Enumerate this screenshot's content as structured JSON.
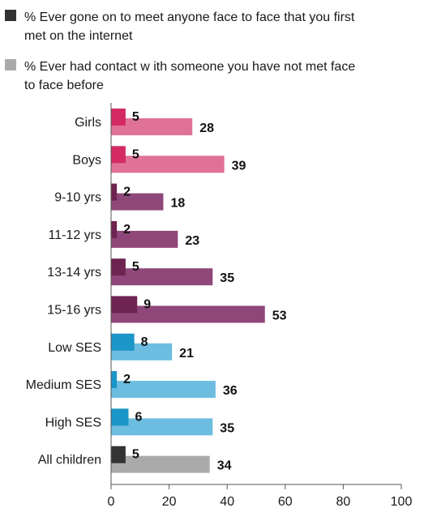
{
  "chart_data": {
    "type": "bar",
    "orientation": "horizontal",
    "title": "",
    "xlabel": "",
    "ylabel": "",
    "xlim": [
      0,
      100
    ],
    "x_ticks": [
      0,
      20,
      40,
      60,
      80,
      100
    ],
    "grid": false,
    "legend_position": "top",
    "series": [
      {
        "name": "% Ever gone on to meet anyone face to face that you first met on the internet",
        "name_lines": [
          "% Ever gone on to meet anyone face to face that you first",
          "met on the internet"
        ],
        "legend_color": "#333333",
        "values": [
          5,
          5,
          2,
          2,
          5,
          9,
          8,
          2,
          6,
          5
        ]
      },
      {
        "name": "% Ever had contact with someone you have not met face to face before",
        "name_lines": [
          "% Ever had contact w ith someone you have not met face",
          "to face before"
        ],
        "legend_color": "#aaaaaa",
        "values": [
          28,
          39,
          18,
          23,
          35,
          53,
          21,
          36,
          35,
          34
        ]
      }
    ],
    "categories": [
      "Girls",
      "Boys",
      "9-10 yrs",
      "11-12 yrs",
      "13-14 yrs",
      "15-16 yrs",
      "Low  SES",
      "Medium SES",
      "High SES",
      "All children"
    ],
    "colors": {
      "meet_by_category": [
        "#d42a63",
        "#d42a63",
        "#6e2350",
        "#6e2350",
        "#6e2350",
        "#6e2350",
        "#1c95c8",
        "#1c95c8",
        "#1c95c8",
        "#333333"
      ],
      "contact_by_category": [
        "#e07297",
        "#e07297",
        "#8f4779",
        "#8f4779",
        "#8f4779",
        "#8f4779",
        "#6cbde0",
        "#6cbde0",
        "#6cbde0",
        "#aaaaaa"
      ]
    }
  }
}
